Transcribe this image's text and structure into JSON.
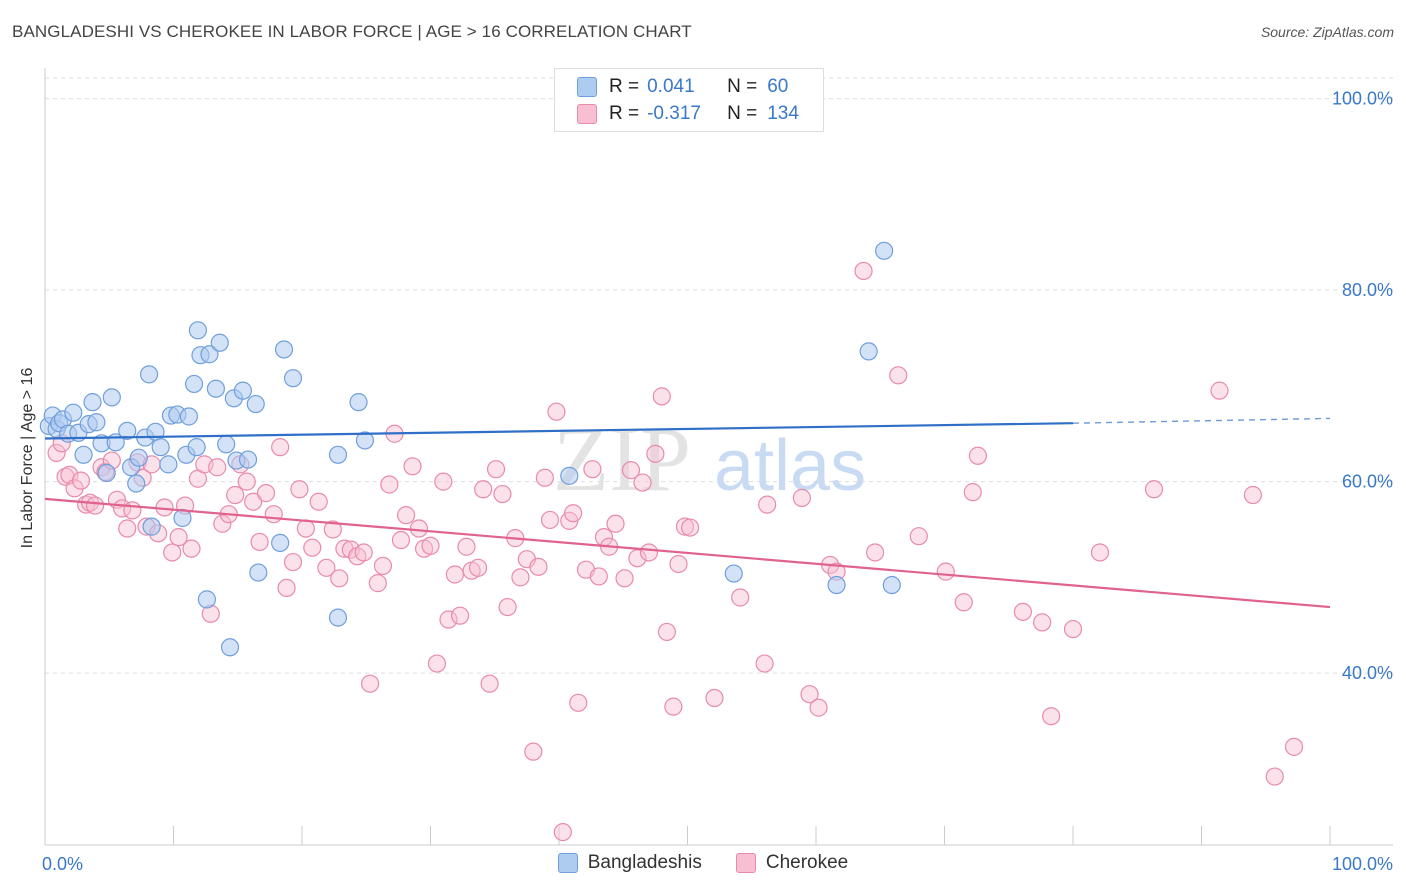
{
  "title": "BANGLADESHI VS CHEROKEE IN LABOR FORCE | AGE > 16 CORRELATION CHART",
  "source": "Source: ZipAtlas.com",
  "watermark": {
    "zip": "ZIP",
    "atlas": "atlas"
  },
  "colors": {
    "blue_fill": "#aecbf0",
    "blue_stroke": "#6f9fdc",
    "blue_line": "#2f6fc8",
    "pink_fill": "#f7bfd1",
    "pink_stroke": "#e98aac",
    "pink_line": "#e0628f",
    "axis_label": "#3a78c9",
    "grid": "#dddddd"
  },
  "legend": {
    "rows": [
      {
        "r_label": "R =",
        "r_value": "0.041",
        "n_label": "N =",
        "n_value": "60"
      },
      {
        "r_label": "R =",
        "r_value": "-0.317",
        "n_label": "N =",
        "n_value": "134"
      }
    ]
  },
  "bottom_legend": [
    "Bangladeshis",
    "Cherokee"
  ],
  "chart_data": {
    "type": "scatter",
    "title": "BANGLADESHI VS CHEROKEE IN LABOR FORCE | AGE > 16 CORRELATION CHART",
    "xlabel": "",
    "ylabel": "In Labor Force | Age > 16",
    "xlim": [
      0,
      100
    ],
    "ylim": [
      22,
      103
    ],
    "x_tick_labels": [
      "0.0%",
      "100.0%"
    ],
    "y_ticks": [
      40,
      60,
      80,
      100
    ],
    "y_tick_labels": [
      "40.0%",
      "60.0%",
      "80.0%",
      "100.0%"
    ],
    "grid": true,
    "legend_position": "top-center",
    "series": [
      {
        "name": "Bangladeshis",
        "trend": {
          "x0": 0,
          "y0": 64.5,
          "x1": 80,
          "y1": 66.1,
          "dashed_to_x": 100,
          "dashed_to_y": 66.6
        },
        "points": [
          [
            0.3,
            65.8
          ],
          [
            0.6,
            66.9
          ],
          [
            0.9,
            65.5
          ],
          [
            1.1,
            66.1
          ],
          [
            1.4,
            66.5
          ],
          [
            1.8,
            65.0
          ],
          [
            2.2,
            67.2
          ],
          [
            2.6,
            65.1
          ],
          [
            3.0,
            62.8
          ],
          [
            3.4,
            66.0
          ],
          [
            3.7,
            68.3
          ],
          [
            4.0,
            66.2
          ],
          [
            4.4,
            64.0
          ],
          [
            4.8,
            60.9
          ],
          [
            5.2,
            68.8
          ],
          [
            5.5,
            64.1
          ],
          [
            6.4,
            65.3
          ],
          [
            6.7,
            61.5
          ],
          [
            7.1,
            59.8
          ],
          [
            7.3,
            62.5
          ],
          [
            7.8,
            64.6
          ],
          [
            8.1,
            71.2
          ],
          [
            8.3,
            55.3
          ],
          [
            8.6,
            65.2
          ],
          [
            9.0,
            63.6
          ],
          [
            9.6,
            61.8
          ],
          [
            9.8,
            66.9
          ],
          [
            10.3,
            67.0
          ],
          [
            10.7,
            56.2
          ],
          [
            11.0,
            62.8
          ],
          [
            11.2,
            66.8
          ],
          [
            11.6,
            70.2
          ],
          [
            11.8,
            63.6
          ],
          [
            11.9,
            75.8
          ],
          [
            12.1,
            73.2
          ],
          [
            12.6,
            47.7
          ],
          [
            12.8,
            73.3
          ],
          [
            13.3,
            69.7
          ],
          [
            13.6,
            74.5
          ],
          [
            14.1,
            63.9
          ],
          [
            14.4,
            42.7
          ],
          [
            14.7,
            68.7
          ],
          [
            14.9,
            62.2
          ],
          [
            15.4,
            69.5
          ],
          [
            15.8,
            62.3
          ],
          [
            16.4,
            68.1
          ],
          [
            16.6,
            50.5
          ],
          [
            18.3,
            53.6
          ],
          [
            18.6,
            73.8
          ],
          [
            19.3,
            70.8
          ],
          [
            22.8,
            62.8
          ],
          [
            24.4,
            68.3
          ],
          [
            24.9,
            64.3
          ],
          [
            22.8,
            45.8
          ],
          [
            40.8,
            60.6
          ],
          [
            53.6,
            50.4
          ],
          [
            61.6,
            49.2
          ],
          [
            64.1,
            73.6
          ],
          [
            65.9,
            49.2
          ],
          [
            65.3,
            84.1
          ]
        ]
      },
      {
        "name": "Cherokee",
        "trend": {
          "x0": 0,
          "y0": 58.2,
          "x1": 100,
          "y1": 46.9
        },
        "points": [
          [
            0.9,
            63.0
          ],
          [
            1.3,
            64.0
          ],
          [
            1.6,
            60.5
          ],
          [
            1.9,
            60.7
          ],
          [
            2.3,
            59.3
          ],
          [
            2.8,
            60.1
          ],
          [
            3.2,
            57.6
          ],
          [
            3.5,
            57.8
          ],
          [
            3.9,
            57.5
          ],
          [
            4.4,
            61.5
          ],
          [
            4.7,
            61.0
          ],
          [
            5.2,
            62.2
          ],
          [
            5.6,
            58.1
          ],
          [
            6.0,
            57.2
          ],
          [
            6.4,
            55.1
          ],
          [
            6.8,
            57.0
          ],
          [
            7.2,
            62.0
          ],
          [
            7.6,
            60.4
          ],
          [
            7.9,
            55.3
          ],
          [
            8.3,
            61.8
          ],
          [
            8.8,
            54.6
          ],
          [
            9.3,
            57.3
          ],
          [
            9.9,
            52.6
          ],
          [
            10.4,
            54.2
          ],
          [
            10.9,
            57.5
          ],
          [
            11.4,
            53.0
          ],
          [
            11.9,
            60.3
          ],
          [
            12.4,
            61.8
          ],
          [
            12.9,
            46.2
          ],
          [
            13.4,
            61.5
          ],
          [
            13.8,
            55.6
          ],
          [
            14.3,
            56.6
          ],
          [
            14.8,
            58.6
          ],
          [
            15.2,
            61.8
          ],
          [
            15.7,
            60.0
          ],
          [
            16.2,
            57.9
          ],
          [
            16.7,
            53.7
          ],
          [
            17.2,
            58.8
          ],
          [
            17.8,
            56.6
          ],
          [
            18.3,
            63.6
          ],
          [
            18.8,
            48.9
          ],
          [
            19.3,
            51.6
          ],
          [
            19.8,
            59.2
          ],
          [
            20.3,
            55.1
          ],
          [
            20.8,
            53.1
          ],
          [
            21.3,
            57.9
          ],
          [
            21.9,
            51.0
          ],
          [
            22.4,
            55.0
          ],
          [
            22.9,
            49.9
          ],
          [
            23.3,
            53.0
          ],
          [
            23.8,
            52.9
          ],
          [
            24.3,
            52.2
          ],
          [
            24.8,
            52.6
          ],
          [
            25.3,
            38.9
          ],
          [
            25.9,
            49.4
          ],
          [
            26.3,
            51.2
          ],
          [
            26.8,
            59.7
          ],
          [
            27.2,
            65.0
          ],
          [
            27.7,
            53.9
          ],
          [
            28.1,
            56.5
          ],
          [
            28.6,
            61.6
          ],
          [
            29.1,
            55.1
          ],
          [
            29.5,
            53.0
          ],
          [
            30.0,
            53.3
          ],
          [
            30.5,
            41.0
          ],
          [
            31.0,
            60.0
          ],
          [
            31.4,
            45.6
          ],
          [
            31.9,
            50.3
          ],
          [
            32.3,
            46.0
          ],
          [
            32.8,
            53.2
          ],
          [
            33.2,
            50.7
          ],
          [
            33.7,
            51.0
          ],
          [
            34.1,
            59.2
          ],
          [
            34.6,
            38.9
          ],
          [
            35.1,
            61.3
          ],
          [
            35.6,
            58.7
          ],
          [
            36.0,
            46.9
          ],
          [
            36.6,
            54.1
          ],
          [
            37.0,
            50.0
          ],
          [
            37.5,
            51.9
          ],
          [
            38.0,
            31.8
          ],
          [
            38.4,
            51.1
          ],
          [
            38.9,
            60.4
          ],
          [
            39.3,
            56.0
          ],
          [
            39.8,
            67.3
          ],
          [
            40.3,
            23.4
          ],
          [
            40.8,
            55.9
          ],
          [
            41.1,
            56.7
          ],
          [
            41.5,
            36.9
          ],
          [
            42.1,
            50.8
          ],
          [
            42.6,
            61.3
          ],
          [
            43.1,
            50.1
          ],
          [
            43.5,
            54.2
          ],
          [
            43.9,
            53.2
          ],
          [
            44.4,
            55.6
          ],
          [
            45.1,
            49.9
          ],
          [
            45.6,
            61.2
          ],
          [
            46.1,
            52.0
          ],
          [
            46.5,
            59.9
          ],
          [
            47.0,
            52.6
          ],
          [
            47.5,
            62.9
          ],
          [
            48.0,
            68.9
          ],
          [
            48.4,
            44.3
          ],
          [
            48.9,
            36.5
          ],
          [
            49.3,
            51.4
          ],
          [
            49.8,
            55.3
          ],
          [
            50.2,
            55.2
          ],
          [
            52.1,
            37.4
          ],
          [
            54.1,
            47.9
          ],
          [
            56.2,
            57.6
          ],
          [
            58.9,
            58.3
          ],
          [
            59.5,
            37.8
          ],
          [
            60.2,
            36.4
          ],
          [
            61.1,
            51.3
          ],
          [
            61.6,
            50.6
          ],
          [
            63.7,
            82.0
          ],
          [
            64.6,
            52.6
          ],
          [
            66.4,
            71.1
          ],
          [
            68.0,
            54.3
          ],
          [
            70.1,
            50.6
          ],
          [
            71.5,
            47.4
          ],
          [
            72.2,
            58.9
          ],
          [
            72.6,
            62.7
          ],
          [
            76.1,
            46.4
          ],
          [
            77.6,
            45.3
          ],
          [
            78.3,
            35.5
          ],
          [
            80.0,
            44.6
          ],
          [
            82.1,
            52.6
          ],
          [
            86.3,
            59.2
          ],
          [
            91.4,
            69.5
          ],
          [
            94.0,
            58.6
          ],
          [
            95.7,
            29.2
          ],
          [
            97.2,
            32.3
          ],
          [
            56.0,
            41.0
          ]
        ]
      }
    ]
  }
}
